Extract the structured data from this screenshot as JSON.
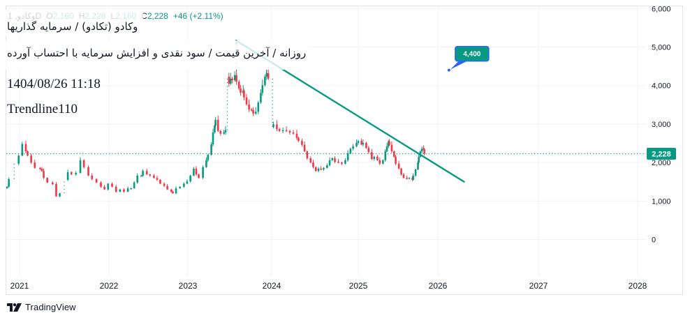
{
  "header": {
    "symbol": "وکادو, 1D",
    "open_label": "O",
    "open": "2,160",
    "high_label": "H",
    "high": "2,228",
    "low_label": "L",
    "low": "2,160",
    "close_label": "C",
    "close": "2,228",
    "change": "+46 (+2.11%)"
  },
  "overlay": {
    "title": "وکادو (تکادو) / سرمایه گذاریها",
    "subtitle": "روزانه / آخرین قیمت / سود نقدی و افزایش سرمایه با احتساب آورده",
    "datetime": "1404/08/26 11:18",
    "indicator": "Trendline110"
  },
  "price_axis": {
    "last_price_label": "2,228"
  },
  "footer": {
    "brand": "TradingView",
    "logo_icon": "tradingview-logo-icon"
  },
  "colors": {
    "up": "#089981",
    "down": "#F23645",
    "trendline": "#089981",
    "last_price": "#089981",
    "callout_fill": "#089981",
    "callout_border": "#2962FF",
    "grid": "#F0F3FA",
    "frame": "#E0E3EB",
    "axis_text": "#131722"
  },
  "chart_data": {
    "type": "line",
    "style": "candlestick",
    "title": "وکادو (تکادو) / سرمایه گذاریها",
    "subtitle": "روزانه / آخرین قیمت / سود نقدی و افزایش سرمایه با احتساب آورده",
    "xlabel": "",
    "ylabel": "",
    "xticks": [
      "2021",
      "2022",
      "2023",
      "2024",
      "2025",
      "2026",
      "2027",
      "2028"
    ],
    "yticks": [
      0,
      1000,
      2000,
      3000,
      4000,
      5000,
      6000
    ],
    "ytick_labels": [
      "0",
      "1,000",
      "2,000",
      "3,000",
      "4,000",
      "5,000",
      "6,000"
    ],
    "ylim": [
      -950,
      6080
    ],
    "xlim": [
      2020.85,
      2028.1
    ],
    "grid": true,
    "legend": "none",
    "last_price": 2228,
    "ohlc_last": {
      "open": 2160,
      "high": 2228,
      "low": 2160,
      "close": 2228,
      "change": 46,
      "change_pct": 2.11
    },
    "series": [
      {
        "name": "وکادو, 1D",
        "point_format": [
          "year",
          "close",
          "high_optional"
        ],
        "points": [
          [
            2020.86,
            1370
          ],
          [
            2020.88,
            1570
          ],
          [
            2020.94,
            1970
          ],
          [
            2020.99,
            2180
          ],
          [
            2021.03,
            2480
          ],
          [
            2021.07,
            2290
          ],
          [
            2021.09,
            2180
          ],
          [
            2021.13,
            2000
          ],
          [
            2021.17,
            1860
          ],
          [
            2021.23,
            1840
          ],
          [
            2021.25,
            1780
          ],
          [
            2021.27,
            1600
          ],
          [
            2021.31,
            1480
          ],
          [
            2021.37,
            1440
          ],
          [
            2021.41,
            1120
          ],
          [
            2021.45,
            1200
          ],
          [
            2021.5,
            1550
          ],
          [
            2021.54,
            1750
          ],
          [
            2021.58,
            1690
          ],
          [
            2021.63,
            1730
          ],
          [
            2021.68,
            2060
          ],
          [
            2021.72,
            1880
          ],
          [
            2021.77,
            1660
          ],
          [
            2021.81,
            1570
          ],
          [
            2021.86,
            1480
          ],
          [
            2021.91,
            1370
          ],
          [
            2021.95,
            1300
          ],
          [
            2021.99,
            1450
          ],
          [
            2022.04,
            1370
          ],
          [
            2022.09,
            1240
          ],
          [
            2022.14,
            1300
          ],
          [
            2022.19,
            1240
          ],
          [
            2022.24,
            1330
          ],
          [
            2022.28,
            1330
          ],
          [
            2022.32,
            1480
          ],
          [
            2022.36,
            1660
          ],
          [
            2022.41,
            1660
          ],
          [
            2022.43,
            1780
          ],
          [
            2022.48,
            1690
          ],
          [
            2022.52,
            1660
          ],
          [
            2022.57,
            1600
          ],
          [
            2022.61,
            1550
          ],
          [
            2022.65,
            1450
          ],
          [
            2022.7,
            1390
          ],
          [
            2022.74,
            1300
          ],
          [
            2022.79,
            1240
          ],
          [
            2022.81,
            1200
          ],
          [
            2022.85,
            1330
          ],
          [
            2022.9,
            1370
          ],
          [
            2022.95,
            1450
          ],
          [
            2022.99,
            1510
          ],
          [
            2023.03,
            1660
          ],
          [
            2023.07,
            1840
          ],
          [
            2023.1,
            1690
          ],
          [
            2023.13,
            1600
          ],
          [
            2023.18,
            1880
          ],
          [
            2023.22,
            2060
          ],
          [
            2023.24,
            2200
          ],
          [
            2023.28,
            2470
          ],
          [
            2023.3,
            2780
          ],
          [
            2023.32,
            2960
          ],
          [
            2023.33,
            3110
          ],
          [
            2023.36,
            2820
          ],
          [
            2023.39,
            2750
          ],
          [
            2023.43,
            2780
          ],
          [
            2023.45,
            2840
          ],
          [
            2023.47,
            4230
          ],
          [
            2023.49,
            4050
          ],
          [
            2023.51,
            4180
          ],
          [
            2023.53,
            4140
          ],
          [
            2023.56,
            4270
          ],
          [
            2023.58,
            4100,
            5150
          ],
          [
            2023.61,
            3920
          ],
          [
            2023.63,
            3810
          ],
          [
            2023.66,
            3870
          ],
          [
            2023.67,
            3690
          ],
          [
            2023.7,
            3510
          ],
          [
            2023.73,
            3380
          ],
          [
            2023.76,
            3360
          ],
          [
            2023.78,
            3270
          ],
          [
            2023.81,
            3320
          ],
          [
            2023.84,
            3560
          ],
          [
            2023.87,
            3810
          ],
          [
            2023.89,
            4010
          ],
          [
            2023.92,
            4230
          ],
          [
            2023.94,
            4320,
            4400
          ],
          [
            2023.96,
            4180
          ],
          [
            2024.01,
            2920
          ],
          [
            2024.02,
            2990
          ],
          [
            2024.06,
            2870
          ],
          [
            2024.09,
            2820
          ],
          [
            2024.13,
            2840
          ],
          [
            2024.17,
            2820
          ],
          [
            2024.21,
            2780
          ],
          [
            2024.25,
            2750
          ],
          [
            2024.29,
            2640
          ],
          [
            2024.31,
            2560
          ],
          [
            2024.35,
            2460
          ],
          [
            2024.38,
            2290
          ],
          [
            2024.41,
            2110
          ],
          [
            2024.45,
            2000
          ],
          [
            2024.48,
            1880
          ],
          [
            2024.51,
            1780
          ],
          [
            2024.54,
            1840
          ],
          [
            2024.57,
            1820
          ],
          [
            2024.6,
            1860
          ],
          [
            2024.64,
            1930
          ],
          [
            2024.67,
            2060
          ],
          [
            2024.7,
            2110
          ],
          [
            2024.73,
            2020
          ],
          [
            2024.77,
            2000
          ],
          [
            2024.81,
            1970
          ],
          [
            2024.85,
            2060
          ],
          [
            2024.88,
            2240
          ],
          [
            2024.91,
            2360
          ],
          [
            2024.94,
            2420
          ],
          [
            2024.98,
            2510
          ],
          [
            2025.0,
            2560
          ],
          [
            2025.04,
            2470
          ],
          [
            2025.06,
            2510
          ],
          [
            2025.1,
            2380
          ],
          [
            2025.13,
            2270
          ],
          [
            2025.17,
            2090
          ],
          [
            2025.2,
            2150
          ],
          [
            2025.24,
            2060
          ],
          [
            2025.27,
            1970
          ],
          [
            2025.31,
            2060
          ],
          [
            2025.34,
            2290
          ],
          [
            2025.36,
            2420
          ],
          [
            2025.38,
            2550
          ],
          [
            2025.39,
            2460
          ],
          [
            2025.42,
            2290
          ],
          [
            2025.45,
            2150
          ],
          [
            2025.47,
            1970
          ],
          [
            2025.51,
            1840
          ],
          [
            2025.54,
            1690
          ],
          [
            2025.57,
            1600
          ],
          [
            2025.61,
            1590
          ],
          [
            2025.64,
            1600
          ],
          [
            2025.68,
            1550
          ],
          [
            2025.69,
            1660
          ],
          [
            2025.72,
            1820
          ],
          [
            2025.75,
            2000
          ],
          [
            2025.76,
            2150
          ],
          [
            2025.78,
            2290
          ],
          [
            2025.8,
            2360
          ],
          [
            2025.82,
            2350
          ],
          [
            2025.83,
            2228
          ]
        ]
      }
    ],
    "trendline": {
      "label": "Trendline110",
      "start": [
        2023.575,
        5170
      ],
      "end": [
        2026.26,
        1500
      ]
    },
    "annotations": [
      {
        "type": "price_callout",
        "t": 2026.11,
        "price": 4400,
        "label": "4,400"
      }
    ]
  }
}
